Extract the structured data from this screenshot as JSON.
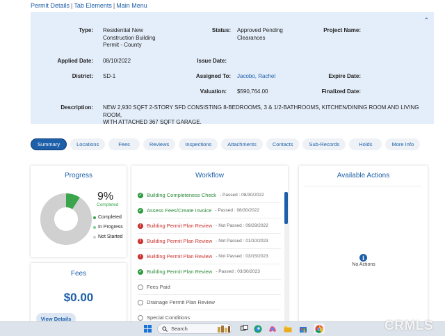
{
  "topnav": {
    "items": [
      "Permit Details",
      "Tab Elements",
      "Main Menu"
    ]
  },
  "details": {
    "type_label": "Type:",
    "type_lines": [
      "Residential New",
      "Construction Building",
      "Permit - County"
    ],
    "status_label": "Status:",
    "status_lines": [
      "Approved Pending",
      "Clearances"
    ],
    "project_name_label": "Project Name:",
    "applied_date_label": "Applied Date:",
    "applied_date": "08/10/2022",
    "issue_date_label": "Issue Date:",
    "district_label": "District:",
    "district": "SD-1",
    "assigned_to_label": "Assigned To:",
    "assigned_to": "Jacobo, Rachel",
    "expire_date_label": "Expire Date:",
    "valuation_label": "Valuation:",
    "valuation": "$590,764.00",
    "finalized_date_label": "Finalized Date:",
    "description_label": "Description:",
    "description_lines": [
      "NEW 2,930 SQFT 2-STORY SFD CONSISTING 8-BEDROOMS, 3 & 1/2-BATHROOMS, KITCHEN/DINING ROOM AND LIVING ROOM,",
      "WITH ATTACHED 367 SQFT GARAGE."
    ],
    "collapse_icon": "chevron-up-icon"
  },
  "tabs": [
    "Summary",
    "Locations",
    "Fees",
    "Reviews",
    "Inspections",
    "Attachments",
    "Contacts",
    "Sub-Records",
    "Holds",
    "More Info"
  ],
  "active_tab": "Summary",
  "progress": {
    "title": "Progress",
    "percent_text": "9%",
    "percent_value": 9,
    "sub_label": "Completed",
    "legend": [
      {
        "label": "Completed",
        "color": "#3aa54a"
      },
      {
        "label": "In Progress",
        "color": "#7fcf93"
      },
      {
        "label": "Not Started",
        "color": "#d0d0d0"
      }
    ]
  },
  "fees": {
    "title": "Fees",
    "amount": "$0.00",
    "view_details_label": "View Details"
  },
  "workflow": {
    "title": "Workflow",
    "items": [
      {
        "name": "Building Completeness Check",
        "status": "passed",
        "detail": "- Passed : 08/30/2022"
      },
      {
        "name": "Assess Fees/Create Invoice",
        "status": "passed",
        "detail": "- Passed : 08/30/2022"
      },
      {
        "name": "Building Permit Plan Review",
        "status": "failed",
        "detail": "- Not Passed : 09/29/2022"
      },
      {
        "name": "Building Permit Plan Review",
        "status": "failed",
        "detail": "- Not Passed : 01/10/2023"
      },
      {
        "name": "Building Permit Plan Review",
        "status": "failed",
        "detail": "- Not Passed : 03/15/2023"
      },
      {
        "name": "Building Permit Plan Review",
        "status": "passed",
        "detail": "- Passed : 03/30/2023"
      },
      {
        "name": "Fees Paid",
        "status": "pending",
        "detail": ""
      },
      {
        "name": "Drainage Permit Plan Review",
        "status": "pending",
        "detail": ""
      },
      {
        "name": "Special Conditions",
        "status": "pending",
        "detail": ""
      }
    ]
  },
  "actions": {
    "title": "Available Actions",
    "empty_text": "No Actions",
    "info_icon_glyph": "i"
  },
  "taskbar": {
    "search_placeholder": "Search",
    "icons": [
      "windows-start-icon",
      "search-icon",
      "widgets-icon",
      "task-view-icon",
      "edge-browser-icon",
      "copilot-icon",
      "file-explorer-icon",
      "store-icon",
      "chrome-icon"
    ]
  },
  "watermark": "CRMLS",
  "colors": {
    "accent": "#1d5fa8",
    "panel_bg": "#e4eefa",
    "passed": "#2c9a3e",
    "failed": "#c9302c"
  }
}
